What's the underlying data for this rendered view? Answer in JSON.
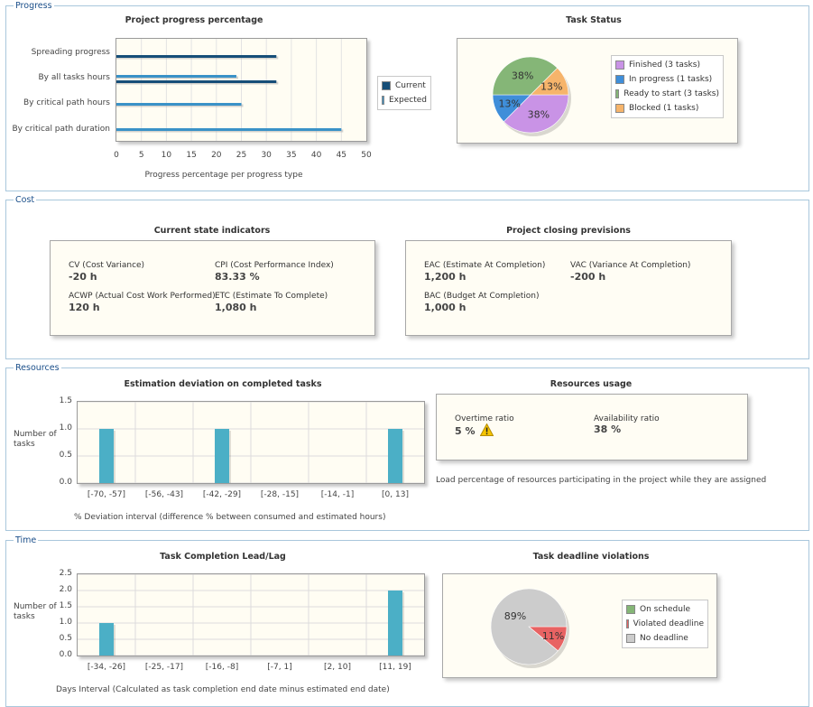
{
  "sections": {
    "progress": "Progress",
    "cost": "Cost",
    "resources": "Resources",
    "time": "Time"
  },
  "progress": {
    "chart_title": "Project progress percentage",
    "xlabel": "Progress percentage per progress type",
    "categories": [
      "Spreading progress",
      "By all tasks hours",
      "By critical path hours",
      "By critical path duration"
    ],
    "ticks": [
      "0",
      "5",
      "10",
      "15",
      "20",
      "25",
      "30",
      "35",
      "40",
      "45",
      "50"
    ],
    "legend": [
      "Current",
      "Expected"
    ]
  },
  "task_status": {
    "title": "Task Status",
    "slices": [
      {
        "label": "Finished (3 tasks)",
        "pct": "38%",
        "color": "#c993e6"
      },
      {
        "label": "In progress (1 tasks)",
        "pct": "13%",
        "color": "#3f8ed9"
      },
      {
        "label": "Ready to start (3 tasks)",
        "pct": "38%",
        "color": "#85b677"
      },
      {
        "label": "Blocked (1 tasks)",
        "pct": "13%",
        "color": "#f6b46b"
      }
    ]
  },
  "cost": {
    "current_title": "Current state indicators",
    "closing_title": "Project closing previsions",
    "indicators": {
      "cv_label": "CV (Cost Variance)",
      "cv_value": "-20 h",
      "cpi_label": "CPI (Cost Performance Index)",
      "cpi_value": "83.33 %",
      "acwp_label": "ACWP (Actual Cost Work Performed)",
      "acwp_value": "120 h",
      "etc_label": "ETC (Estimate To Complete)",
      "etc_value": "1,080 h"
    },
    "previsions": {
      "eac_label": "EAC (Estimate At Completion)",
      "eac_value": "1,200 h",
      "vac_label": "VAC (Variance At Completion)",
      "vac_value": "-200 h",
      "bac_label": "BAC (Budget At Completion)",
      "bac_value": "1,000 h"
    }
  },
  "resources": {
    "deviation_title": "Estimation deviation on completed tasks",
    "deviation_ylabel_1": "Number of",
    "deviation_ylabel_2": "tasks",
    "deviation_xlabel": "% Deviation interval (difference % between consumed and estimated hours)",
    "deviation_yticks": [
      "1.5",
      "1.0",
      "0.5",
      "0.0"
    ],
    "usage_title": "Resources usage",
    "overtime_label": "Overtime ratio",
    "overtime_value": "5 %",
    "availability_label": "Availability ratio",
    "availability_value": "38 %",
    "usage_note": "Load percentage of resources participating in the project while they are assigned"
  },
  "time": {
    "leadlag_title": "Task Completion Lead/Lag",
    "leadlag_ylabel_1": "Number of",
    "leadlag_ylabel_2": "tasks",
    "leadlag_xlabel": "Days Interval (Calculated as task completion end date minus estimated end date)",
    "leadlag_yticks": [
      "2.5",
      "2.0",
      "1.5",
      "1.0",
      "0.5",
      "0.0"
    ],
    "deadline_title": "Task deadline violations",
    "deadline_legend": [
      {
        "label": "On schedule",
        "color": "#85b677"
      },
      {
        "label": "Violated deadline",
        "color": "#e86363"
      },
      {
        "label": "No deadline",
        "color": "#cccccc"
      }
    ],
    "deadline_pct_big": "89%",
    "deadline_pct_small": "11%"
  },
  "chart_data": [
    {
      "type": "bar",
      "title": "Project progress percentage",
      "xlabel": "Progress percentage per progress type",
      "categories": [
        "Spreading progress",
        "By all tasks hours",
        "By critical path hours",
        "By critical path duration"
      ],
      "series": [
        {
          "name": "Current",
          "values": [
            32,
            32,
            0,
            0
          ],
          "color": "#164e78"
        },
        {
          "name": "Expected",
          "values": [
            0,
            24,
            25,
            45
          ],
          "color": "#3a92c7"
        }
      ],
      "xlim": [
        0,
        50
      ],
      "orientation": "horizontal"
    },
    {
      "type": "pie",
      "title": "Task Status",
      "labels": [
        "Finished",
        "In progress",
        "Ready to start",
        "Blocked"
      ],
      "values": [
        3,
        1,
        3,
        1
      ]
    },
    {
      "type": "bar",
      "title": "Estimation deviation on completed tasks",
      "xlabel": "% Deviation interval (difference % between consumed and estimated hours)",
      "ylabel": "Number of tasks",
      "categories": [
        "[-70, -57]",
        "[-56, -43]",
        "[-42, -29]",
        "[-28, -15]",
        "[-14, -1]",
        "[0, 13]"
      ],
      "values": [
        1,
        0,
        1,
        0,
        0,
        1
      ],
      "ylim": [
        0,
        1.5
      ]
    },
    {
      "type": "bar",
      "title": "Task Completion Lead/Lag",
      "xlabel": "Days Interval (Calculated as task completion end date minus estimated end date)",
      "ylabel": "Number of tasks",
      "categories": [
        "[-34, -26]",
        "[-25, -17]",
        "[-16, -8]",
        "[-7, 1]",
        "[2, 10]",
        "[11, 19]"
      ],
      "values": [
        1,
        0,
        0,
        0,
        0,
        2
      ],
      "ylim": [
        0,
        2.5
      ]
    },
    {
      "type": "pie",
      "title": "Task deadline violations",
      "labels": [
        "On schedule",
        "Violated deadline",
        "No deadline"
      ],
      "values": [
        0,
        11,
        89
      ]
    }
  ]
}
